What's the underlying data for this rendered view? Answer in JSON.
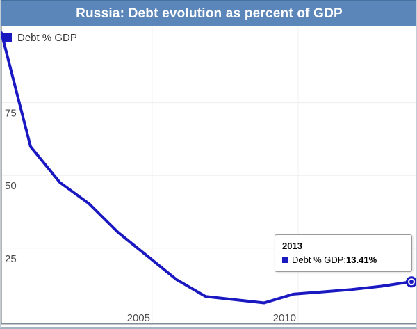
{
  "header": {
    "title": "Russia: Debt evolution as percent of GDP"
  },
  "legend": {
    "label": "Debt % GDP"
  },
  "tooltip": {
    "year": "2013",
    "series_label": "Debt % GDP",
    "separator": ": ",
    "value_label": "13.41%"
  },
  "colors": {
    "header_bg": "#5b86ba",
    "series": "#1a18c0",
    "grid_h": "#ededf0",
    "grid_v": "#f1f1f4",
    "axis_text": "#4a4a4a",
    "y_axis_line": "#b3b3b3",
    "x_axis_line": "#848c96"
  },
  "chart_data": {
    "type": "line",
    "title": "Russia: Debt evolution as percent of GDP",
    "xlabel": "",
    "ylabel": "",
    "grid": true,
    "legend_position": "top-left",
    "x": [
      1999,
      2000,
      2001,
      2002,
      2003,
      2004,
      2005,
      2006,
      2007,
      2008,
      2009,
      2010,
      2011,
      2012,
      2013
    ],
    "series": [
      {
        "name": "Debt % GDP",
        "values": [
          99.0,
          59.9,
          47.6,
          40.3,
          30.4,
          22.3,
          14.2,
          8.4,
          7.3,
          6.2,
          9.2,
          10.0,
          10.8,
          11.9,
          13.41
        ]
      }
    ],
    "xticks": [
      "2005",
      "2010"
    ],
    "yticks": [
      "25",
      "50",
      "75"
    ],
    "xlim": [
      1999,
      2013
    ],
    "ylim": [
      0,
      101
    ],
    "highlighted_point": {
      "x": 2013,
      "value": 13.41
    }
  }
}
